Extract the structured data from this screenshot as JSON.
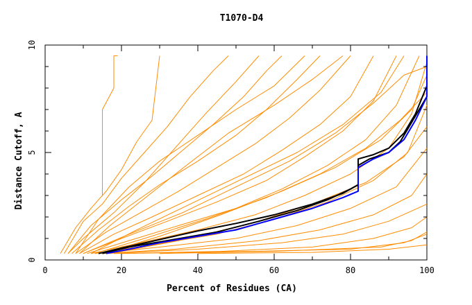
{
  "chart_data": {
    "type": "line",
    "title": "T1070-D4",
    "xlabel": "Percent of Residues (CA)",
    "ylabel": "Distance Cutoff, A",
    "xlim": [
      0,
      100
    ],
    "ylim": [
      0,
      10
    ],
    "x_ticks": [
      0,
      20,
      40,
      60,
      80,
      100
    ],
    "y_ticks": [
      0,
      5,
      10
    ],
    "x_minor_step": 10,
    "y_minor_step": 1,
    "grid": false,
    "colors": {
      "background_models": "#ff8c00",
      "highlight_black": "#000000",
      "highlight_blue": "#0000ff"
    },
    "series": [
      {
        "color": "#ff8c00",
        "points": [
          [
            18,
            9.0
          ],
          [
            18,
            9.5
          ],
          [
            19,
            9.5
          ]
        ]
      },
      {
        "color": "#ff8c00",
        "points": [
          [
            15,
            3.0
          ],
          [
            15,
            7.0
          ],
          [
            18,
            8.0
          ],
          [
            18,
            9.0
          ]
        ]
      },
      {
        "color": "#ff8c00",
        "points": [
          [
            4,
            0.3
          ],
          [
            8,
            1.5
          ],
          [
            12,
            2.4
          ],
          [
            16,
            3.2
          ],
          [
            20,
            4.2
          ],
          [
            24,
            5.5
          ],
          [
            28,
            6.5
          ],
          [
            30,
            9.5
          ]
        ]
      },
      {
        "color": "#ff8c00",
        "points": [
          [
            5,
            0.3
          ],
          [
            10,
            1.8
          ],
          [
            15,
            2.6
          ],
          [
            20,
            3.8
          ],
          [
            26,
            5.0
          ],
          [
            32,
            6.2
          ],
          [
            38,
            7.6
          ],
          [
            44,
            8.8
          ],
          [
            48,
            9.5
          ]
        ]
      },
      {
        "color": "#ff8c00",
        "points": [
          [
            6,
            0.3
          ],
          [
            12,
            1.6
          ],
          [
            20,
            2.8
          ],
          [
            28,
            3.9
          ],
          [
            36,
            5.1
          ],
          [
            44,
            6.3
          ],
          [
            52,
            7.6
          ],
          [
            58,
            8.8
          ],
          [
            62,
            9.5
          ]
        ]
      },
      {
        "color": "#ff8c00",
        "points": [
          [
            7,
            0.3
          ],
          [
            14,
            1.4
          ],
          [
            22,
            2.5
          ],
          [
            30,
            3.5
          ],
          [
            40,
            4.6
          ],
          [
            50,
            5.8
          ],
          [
            58,
            7.0
          ],
          [
            66,
            8.4
          ],
          [
            72,
            9.5
          ]
        ]
      },
      {
        "color": "#ff8c00",
        "points": [
          [
            8,
            0.3
          ],
          [
            16,
            1.3
          ],
          [
            25,
            2.2
          ],
          [
            35,
            3.2
          ],
          [
            45,
            4.3
          ],
          [
            55,
            5.4
          ],
          [
            64,
            6.6
          ],
          [
            72,
            7.9
          ],
          [
            80,
            9.5
          ]
        ]
      },
      {
        "color": "#ff8c00",
        "points": [
          [
            9,
            0.3
          ],
          [
            18,
            1.2
          ],
          [
            28,
            2.0
          ],
          [
            40,
            3.0
          ],
          [
            52,
            4.0
          ],
          [
            62,
            5.1
          ],
          [
            72,
            6.3
          ],
          [
            80,
            7.6
          ],
          [
            86,
            9.5
          ]
        ]
      },
      {
        "color": "#ff8c00",
        "points": [
          [
            10,
            0.3
          ],
          [
            20,
            1.0
          ],
          [
            32,
            1.8
          ],
          [
            45,
            2.7
          ],
          [
            58,
            3.7
          ],
          [
            68,
            4.8
          ],
          [
            78,
            6.0
          ],
          [
            86,
            7.4
          ],
          [
            92,
            9.5
          ]
        ]
      },
      {
        "color": "#ff8c00",
        "points": [
          [
            11,
            0.3
          ],
          [
            22,
            0.9
          ],
          [
            35,
            1.6
          ],
          [
            50,
            2.4
          ],
          [
            62,
            3.3
          ],
          [
            74,
            4.4
          ],
          [
            84,
            5.6
          ],
          [
            92,
            7.2
          ],
          [
            98,
            9.5
          ]
        ]
      },
      {
        "color": "#ff8c00",
        "points": [
          [
            12,
            0.3
          ],
          [
            25,
            0.8
          ],
          [
            40,
            1.4
          ],
          [
            55,
            2.1
          ],
          [
            68,
            3.0
          ],
          [
            80,
            4.0
          ],
          [
            90,
            5.2
          ],
          [
            96,
            6.8
          ],
          [
            100,
            9.2
          ]
        ]
      },
      {
        "color": "#ff8c00",
        "points": [
          [
            13,
            0.3
          ],
          [
            28,
            0.7
          ],
          [
            45,
            1.2
          ],
          [
            60,
            1.9
          ],
          [
            74,
            2.7
          ],
          [
            86,
            3.7
          ],
          [
            95,
            5.0
          ],
          [
            100,
            7.2
          ]
        ]
      },
      {
        "color": "#ff8c00",
        "points": [
          [
            14,
            0.3
          ],
          [
            30,
            0.6
          ],
          [
            50,
            1.0
          ],
          [
            66,
            1.6
          ],
          [
            80,
            2.4
          ],
          [
            92,
            3.4
          ],
          [
            100,
            5.2
          ]
        ]
      },
      {
        "color": "#ff8c00",
        "points": [
          [
            15,
            0.3
          ],
          [
            34,
            0.5
          ],
          [
            56,
            0.9
          ],
          [
            72,
            1.4
          ],
          [
            86,
            2.1
          ],
          [
            96,
            3.0
          ],
          [
            100,
            4.0
          ]
        ]
      },
      {
        "color": "#ff8c00",
        "points": [
          [
            16,
            0.3
          ],
          [
            40,
            0.5
          ],
          [
            62,
            0.8
          ],
          [
            78,
            1.2
          ],
          [
            90,
            1.8
          ],
          [
            100,
            2.6
          ]
        ]
      },
      {
        "color": "#ff8c00",
        "points": [
          [
            18,
            0.3
          ],
          [
            46,
            0.4
          ],
          [
            70,
            0.6
          ],
          [
            86,
            1.0
          ],
          [
            96,
            1.5
          ],
          [
            100,
            2.0
          ]
        ]
      },
      {
        "color": "#ff8c00",
        "points": [
          [
            20,
            0.3
          ],
          [
            55,
            0.4
          ],
          [
            80,
            0.5
          ],
          [
            94,
            0.8
          ],
          [
            100,
            1.2
          ]
        ]
      },
      {
        "color": "#ff8c00",
        "points": [
          [
            30,
            0.3
          ],
          [
            60,
            0.4
          ],
          [
            88,
            0.6
          ],
          [
            96,
            0.9
          ],
          [
            100,
            1.3
          ]
        ]
      },
      {
        "color": "#ff8c00",
        "points": [
          [
            40,
            0.3
          ],
          [
            70,
            0.35
          ],
          [
            90,
            0.5
          ],
          [
            100,
            0.7
          ]
        ]
      },
      {
        "color": "#ff8c00",
        "points": [
          [
            6,
            0.3
          ],
          [
            10,
            1.0
          ],
          [
            18,
            2.2
          ],
          [
            26,
            3.6
          ],
          [
            34,
            5.2
          ],
          [
            42,
            6.8
          ],
          [
            50,
            8.3
          ],
          [
            56,
            9.5
          ]
        ]
      },
      {
        "color": "#ff8c00",
        "points": [
          [
            9,
            0.3
          ],
          [
            17,
            1.6
          ],
          [
            27,
            3.0
          ],
          [
            37,
            4.4
          ],
          [
            48,
            5.9
          ],
          [
            60,
            7.2
          ],
          [
            70,
            8.4
          ],
          [
            78,
            9.5
          ]
        ]
      },
      {
        "color": "#ff8c00",
        "points": [
          [
            12,
            0.3
          ],
          [
            24,
            1.4
          ],
          [
            38,
            2.6
          ],
          [
            52,
            3.8
          ],
          [
            66,
            5.0
          ],
          [
            78,
            6.3
          ],
          [
            88,
            7.8
          ],
          [
            94,
            9.5
          ]
        ]
      },
      {
        "color": "#ff8c00",
        "points": [
          [
            15,
            0.3
          ],
          [
            30,
            1.1
          ],
          [
            46,
            2.1
          ],
          [
            62,
            3.2
          ],
          [
            76,
            4.3
          ],
          [
            88,
            5.6
          ],
          [
            96,
            7.0
          ],
          [
            100,
            8.6
          ]
        ]
      },
      {
        "color": "#ff8c00",
        "points": [
          [
            17,
            0.3
          ],
          [
            35,
            0.9
          ],
          [
            54,
            1.7
          ],
          [
            70,
            2.6
          ],
          [
            84,
            3.6
          ],
          [
            94,
            4.8
          ],
          [
            100,
            6.2
          ]
        ]
      },
      {
        "color": "#ff8c00",
        "points": [
          [
            10,
            0.3
          ],
          [
            22,
            1.2
          ],
          [
            36,
            2.2
          ],
          [
            50,
            3.4
          ],
          [
            64,
            4.6
          ],
          [
            76,
            5.9
          ],
          [
            86,
            7.3
          ],
          [
            94,
            8.6
          ],
          [
            100,
            9.0
          ]
        ]
      },
      {
        "color": "#ff8c00",
        "points": [
          [
            13,
            0.3
          ],
          [
            26,
            1.0
          ],
          [
            42,
            1.9
          ],
          [
            58,
            2.9
          ],
          [
            72,
            4.0
          ],
          [
            84,
            5.2
          ],
          [
            93,
            6.5
          ],
          [
            100,
            7.8
          ]
        ]
      },
      {
        "color": "#ff8c00",
        "points": [
          [
            8,
            0.3
          ],
          [
            14,
            1.9
          ],
          [
            22,
            3.4
          ],
          [
            30,
            4.6
          ],
          [
            40,
            5.8
          ],
          [
            50,
            7.0
          ],
          [
            60,
            8.1
          ],
          [
            68,
            9.5
          ]
        ]
      },
      {
        "color": "#000000",
        "points": [
          [
            14,
            0.3
          ],
          [
            20,
            0.55
          ],
          [
            30,
            0.95
          ],
          [
            40,
            1.35
          ],
          [
            50,
            1.7
          ],
          [
            60,
            2.1
          ],
          [
            70,
            2.6
          ],
          [
            78,
            3.1
          ],
          [
            82,
            3.5
          ],
          [
            82,
            4.7
          ],
          [
            86,
            4.9
          ],
          [
            90,
            5.2
          ],
          [
            94,
            5.9
          ],
          [
            97,
            6.8
          ],
          [
            100,
            8.1
          ]
        ]
      },
      {
        "color": "#000000",
        "points": [
          [
            15,
            0.3
          ],
          [
            22,
            0.6
          ],
          [
            32,
            0.9
          ],
          [
            45,
            1.3
          ],
          [
            56,
            1.8
          ],
          [
            66,
            2.3
          ],
          [
            74,
            2.8
          ],
          [
            80,
            3.3
          ],
          [
            82,
            3.5
          ],
          [
            82,
            4.4
          ],
          [
            85,
            4.7
          ],
          [
            90,
            5.0
          ],
          [
            93,
            5.5
          ],
          [
            96,
            6.4
          ],
          [
            100,
            7.6
          ]
        ]
      },
      {
        "color": "#0000ff",
        "points": [
          [
            16,
            0.3
          ],
          [
            22,
            0.5
          ],
          [
            30,
            0.8
          ],
          [
            40,
            1.1
          ],
          [
            50,
            1.4
          ],
          [
            60,
            1.9
          ],
          [
            70,
            2.4
          ],
          [
            78,
            2.9
          ],
          [
            82,
            3.2
          ],
          [
            82,
            4.3
          ],
          [
            86,
            4.7
          ],
          [
            90,
            5.0
          ],
          [
            94,
            5.6
          ],
          [
            97,
            6.5
          ],
          [
            100,
            7.6
          ],
          [
            100,
            9.5
          ]
        ]
      }
    ]
  }
}
